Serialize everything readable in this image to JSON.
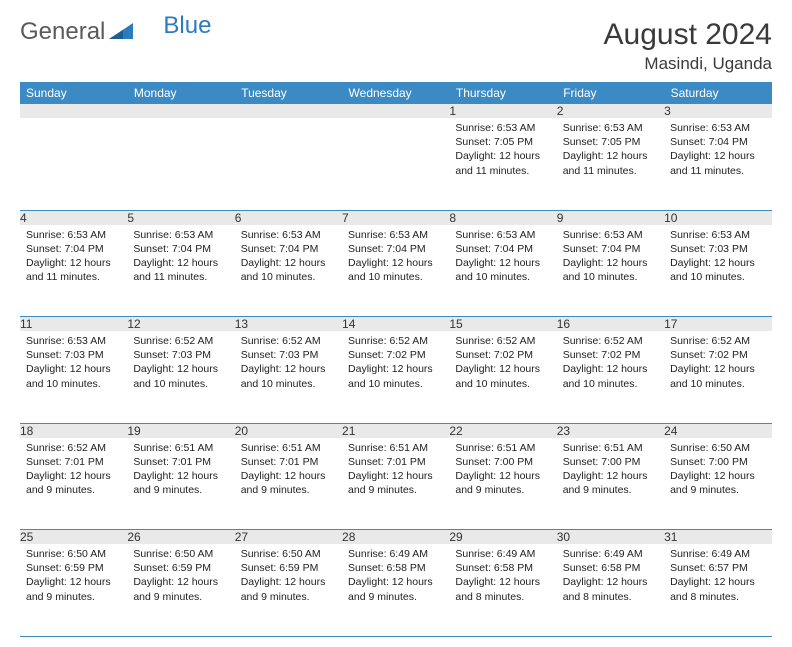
{
  "brand": {
    "general": "General",
    "blue": "Blue"
  },
  "title": "August 2024",
  "location": "Masindi, Uganda",
  "colors": {
    "header_bg": "#3b8ac4",
    "header_text": "#ffffff",
    "daynum_bg": "#e9e9e9",
    "row_border": "#3b8ac4",
    "body_text": "#222222",
    "title_text": "#3a3a3a",
    "brand_gray": "#5a5a5a",
    "brand_blue": "#2b7bbf"
  },
  "day_headers": [
    "Sunday",
    "Monday",
    "Tuesday",
    "Wednesday",
    "Thursday",
    "Friday",
    "Saturday"
  ],
  "weeks": [
    [
      {
        "n": "",
        "sr": "",
        "ss": "",
        "dl": ""
      },
      {
        "n": "",
        "sr": "",
        "ss": "",
        "dl": ""
      },
      {
        "n": "",
        "sr": "",
        "ss": "",
        "dl": ""
      },
      {
        "n": "",
        "sr": "",
        "ss": "",
        "dl": ""
      },
      {
        "n": "1",
        "sr": "Sunrise: 6:53 AM",
        "ss": "Sunset: 7:05 PM",
        "dl": "Daylight: 12 hours and 11 minutes."
      },
      {
        "n": "2",
        "sr": "Sunrise: 6:53 AM",
        "ss": "Sunset: 7:05 PM",
        "dl": "Daylight: 12 hours and 11 minutes."
      },
      {
        "n": "3",
        "sr": "Sunrise: 6:53 AM",
        "ss": "Sunset: 7:04 PM",
        "dl": "Daylight: 12 hours and 11 minutes."
      }
    ],
    [
      {
        "n": "4",
        "sr": "Sunrise: 6:53 AM",
        "ss": "Sunset: 7:04 PM",
        "dl": "Daylight: 12 hours and 11 minutes."
      },
      {
        "n": "5",
        "sr": "Sunrise: 6:53 AM",
        "ss": "Sunset: 7:04 PM",
        "dl": "Daylight: 12 hours and 11 minutes."
      },
      {
        "n": "6",
        "sr": "Sunrise: 6:53 AM",
        "ss": "Sunset: 7:04 PM",
        "dl": "Daylight: 12 hours and 10 minutes."
      },
      {
        "n": "7",
        "sr": "Sunrise: 6:53 AM",
        "ss": "Sunset: 7:04 PM",
        "dl": "Daylight: 12 hours and 10 minutes."
      },
      {
        "n": "8",
        "sr": "Sunrise: 6:53 AM",
        "ss": "Sunset: 7:04 PM",
        "dl": "Daylight: 12 hours and 10 minutes."
      },
      {
        "n": "9",
        "sr": "Sunrise: 6:53 AM",
        "ss": "Sunset: 7:04 PM",
        "dl": "Daylight: 12 hours and 10 minutes."
      },
      {
        "n": "10",
        "sr": "Sunrise: 6:53 AM",
        "ss": "Sunset: 7:03 PM",
        "dl": "Daylight: 12 hours and 10 minutes."
      }
    ],
    [
      {
        "n": "11",
        "sr": "Sunrise: 6:53 AM",
        "ss": "Sunset: 7:03 PM",
        "dl": "Daylight: 12 hours and 10 minutes."
      },
      {
        "n": "12",
        "sr": "Sunrise: 6:52 AM",
        "ss": "Sunset: 7:03 PM",
        "dl": "Daylight: 12 hours and 10 minutes."
      },
      {
        "n": "13",
        "sr": "Sunrise: 6:52 AM",
        "ss": "Sunset: 7:03 PM",
        "dl": "Daylight: 12 hours and 10 minutes."
      },
      {
        "n": "14",
        "sr": "Sunrise: 6:52 AM",
        "ss": "Sunset: 7:02 PM",
        "dl": "Daylight: 12 hours and 10 minutes."
      },
      {
        "n": "15",
        "sr": "Sunrise: 6:52 AM",
        "ss": "Sunset: 7:02 PM",
        "dl": "Daylight: 12 hours and 10 minutes."
      },
      {
        "n": "16",
        "sr": "Sunrise: 6:52 AM",
        "ss": "Sunset: 7:02 PM",
        "dl": "Daylight: 12 hours and 10 minutes."
      },
      {
        "n": "17",
        "sr": "Sunrise: 6:52 AM",
        "ss": "Sunset: 7:02 PM",
        "dl": "Daylight: 12 hours and 10 minutes."
      }
    ],
    [
      {
        "n": "18",
        "sr": "Sunrise: 6:52 AM",
        "ss": "Sunset: 7:01 PM",
        "dl": "Daylight: 12 hours and 9 minutes."
      },
      {
        "n": "19",
        "sr": "Sunrise: 6:51 AM",
        "ss": "Sunset: 7:01 PM",
        "dl": "Daylight: 12 hours and 9 minutes."
      },
      {
        "n": "20",
        "sr": "Sunrise: 6:51 AM",
        "ss": "Sunset: 7:01 PM",
        "dl": "Daylight: 12 hours and 9 minutes."
      },
      {
        "n": "21",
        "sr": "Sunrise: 6:51 AM",
        "ss": "Sunset: 7:01 PM",
        "dl": "Daylight: 12 hours and 9 minutes."
      },
      {
        "n": "22",
        "sr": "Sunrise: 6:51 AM",
        "ss": "Sunset: 7:00 PM",
        "dl": "Daylight: 12 hours and 9 minutes."
      },
      {
        "n": "23",
        "sr": "Sunrise: 6:51 AM",
        "ss": "Sunset: 7:00 PM",
        "dl": "Daylight: 12 hours and 9 minutes."
      },
      {
        "n": "24",
        "sr": "Sunrise: 6:50 AM",
        "ss": "Sunset: 7:00 PM",
        "dl": "Daylight: 12 hours and 9 minutes."
      }
    ],
    [
      {
        "n": "25",
        "sr": "Sunrise: 6:50 AM",
        "ss": "Sunset: 6:59 PM",
        "dl": "Daylight: 12 hours and 9 minutes."
      },
      {
        "n": "26",
        "sr": "Sunrise: 6:50 AM",
        "ss": "Sunset: 6:59 PM",
        "dl": "Daylight: 12 hours and 9 minutes."
      },
      {
        "n": "27",
        "sr": "Sunrise: 6:50 AM",
        "ss": "Sunset: 6:59 PM",
        "dl": "Daylight: 12 hours and 9 minutes."
      },
      {
        "n": "28",
        "sr": "Sunrise: 6:49 AM",
        "ss": "Sunset: 6:58 PM",
        "dl": "Daylight: 12 hours and 9 minutes."
      },
      {
        "n": "29",
        "sr": "Sunrise: 6:49 AM",
        "ss": "Sunset: 6:58 PM",
        "dl": "Daylight: 12 hours and 8 minutes."
      },
      {
        "n": "30",
        "sr": "Sunrise: 6:49 AM",
        "ss": "Sunset: 6:58 PM",
        "dl": "Daylight: 12 hours and 8 minutes."
      },
      {
        "n": "31",
        "sr": "Sunrise: 6:49 AM",
        "ss": "Sunset: 6:57 PM",
        "dl": "Daylight: 12 hours and 8 minutes."
      }
    ]
  ]
}
